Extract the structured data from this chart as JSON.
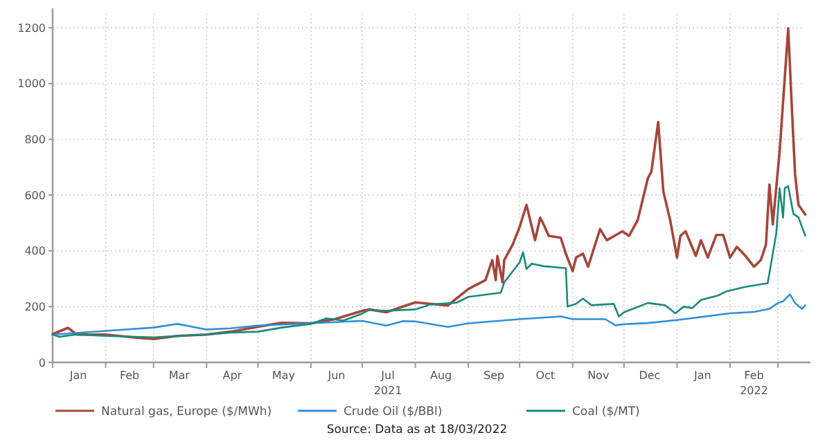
{
  "chart_data": {
    "type": "line",
    "annotations": [
      "Source: Data as at 18/03/2022"
    ],
    "xlim": [
      "2021-01-01",
      "2022-03-20"
    ],
    "xticks": [
      {
        "value": "2021-01-01",
        "label": null
      },
      {
        "value": "2021-01-16",
        "label": "Jan"
      },
      {
        "value": "2021-02-01",
        "label": null
      },
      {
        "value": "2021-02-15",
        "label": "Feb"
      },
      {
        "value": "2021-03-01",
        "label": null
      },
      {
        "value": "2021-03-16",
        "label": "Mar"
      },
      {
        "value": "2021-04-01",
        "label": null
      },
      {
        "value": "2021-04-16",
        "label": "Apr"
      },
      {
        "value": "2021-05-01",
        "label": null
      },
      {
        "value": "2021-05-16",
        "label": "May"
      },
      {
        "value": "2021-06-01",
        "label": null
      },
      {
        "value": "2021-06-16",
        "label": "Jun"
      },
      {
        "value": "2021-07-01",
        "label": null
      },
      {
        "value": "2021-07-16",
        "label": "Jul\n2021"
      },
      {
        "value": "2021-08-01",
        "label": null
      },
      {
        "value": "2021-08-16",
        "label": "Aug"
      },
      {
        "value": "2021-09-01",
        "label": null
      },
      {
        "value": "2021-09-16",
        "label": "Sep"
      },
      {
        "value": "2021-10-01",
        "label": null
      },
      {
        "value": "2021-10-16",
        "label": "Oct"
      },
      {
        "value": "2021-11-01",
        "label": null
      },
      {
        "value": "2021-11-16",
        "label": "Nov"
      },
      {
        "value": "2021-12-01",
        "label": null
      },
      {
        "value": "2021-12-16",
        "label": "Dec"
      },
      {
        "value": "2022-01-01",
        "label": null
      },
      {
        "value": "2022-01-16",
        "label": "Jan"
      },
      {
        "value": "2022-02-01",
        "label": null
      },
      {
        "value": "2022-02-15",
        "label": "Feb\n2022"
      },
      {
        "value": "2022-03-01",
        "label": null
      }
    ],
    "ylim": [
      0,
      1250
    ],
    "yticks": [
      0,
      200,
      400,
      600,
      800,
      1000,
      1200
    ],
    "grid": true,
    "legend": "bottom",
    "marker": "none",
    "line_style": "solid",
    "series": [
      {
        "name": "Natural gas, Europe ($/MWh)",
        "color": "#a5463a",
        "x": [
          "2021-01-01",
          "2021-01-10",
          "2021-01-15",
          "2021-02-01",
          "2021-02-20",
          "2021-03-01",
          "2021-03-15",
          "2021-04-01",
          "2021-04-15",
          "2021-05-01",
          "2021-05-15",
          "2021-06-01",
          "2021-06-15",
          "2021-07-01",
          "2021-07-05",
          "2021-07-15",
          "2021-08-01",
          "2021-08-20",
          "2021-09-01",
          "2021-09-11",
          "2021-09-15",
          "2021-09-17",
          "2021-09-18",
          "2021-09-21",
          "2021-09-22",
          "2021-09-27",
          "2021-10-01",
          "2021-10-05",
          "2021-10-10",
          "2021-10-13",
          "2021-10-15",
          "2021-10-18",
          "2021-10-25",
          "2021-10-28",
          "2021-11-01",
          "2021-11-03",
          "2021-11-07",
          "2021-11-10",
          "2021-11-17",
          "2021-11-21",
          "2021-11-30",
          "2021-12-04",
          "2021-12-09",
          "2021-12-15",
          "2021-12-17",
          "2021-12-21",
          "2021-12-24",
          "2021-12-28",
          "2022-01-01",
          "2022-01-03",
          "2022-01-06",
          "2022-01-12",
          "2022-01-15",
          "2022-01-19",
          "2022-01-24",
          "2022-01-28",
          "2022-02-01",
          "2022-02-05",
          "2022-02-10",
          "2022-02-15",
          "2022-02-19",
          "2022-02-22",
          "2022-02-24",
          "2022-02-26",
          "2022-03-02",
          "2022-03-07",
          "2022-03-09",
          "2022-03-11",
          "2022-03-13",
          "2022-03-17"
        ],
        "values": [
          101,
          124,
          100,
          100,
          88,
          84,
          95,
          100,
          110,
          128,
          142,
          140,
          155,
          185,
          190,
          180,
          215,
          204,
          263,
          295,
          367,
          295,
          382,
          287,
          367,
          423,
          486,
          565,
          438,
          519,
          495,
          454,
          447,
          390,
          327,
          376,
          390,
          343,
          478,
          438,
          470,
          454,
          510,
          661,
          684,
          862,
          613,
          510,
          376,
          454,
          470,
          382,
          438,
          376,
          457,
          457,
          376,
          414,
          382,
          343,
          367,
          423,
          638,
          495,
          757,
          1198,
          930,
          676,
          565,
          530
        ]
      },
      {
        "name": "Crude Oil ($/BBl)",
        "color": "#2f8fdb",
        "x": [
          "2021-01-01",
          "2021-02-01",
          "2021-03-01",
          "2021-03-15",
          "2021-04-01",
          "2021-04-15",
          "2021-05-01",
          "2021-06-01",
          "2021-07-01",
          "2021-07-15",
          "2021-07-25",
          "2021-08-01",
          "2021-08-20",
          "2021-09-01",
          "2021-10-01",
          "2021-10-25",
          "2021-11-01",
          "2021-11-20",
          "2021-11-26",
          "2021-12-01",
          "2021-12-15",
          "2022-01-01",
          "2022-02-01",
          "2022-02-15",
          "2022-02-24",
          "2022-03-01",
          "2022-03-04",
          "2022-03-08",
          "2022-03-11",
          "2022-03-15",
          "2022-03-17"
        ],
        "values": [
          100,
          113,
          125,
          138,
          118,
          122,
          132,
          140,
          149,
          132,
          148,
          147,
          127,
          140,
          155,
          165,
          155,
          155,
          133,
          137,
          141,
          152,
          176,
          181,
          192,
          213,
          219,
          244,
          213,
          192,
          205
        ]
      },
      {
        "name": "Coal ($/MT)",
        "color": "#1a8a7a",
        "x": [
          "2021-01-01",
          "2021-01-05",
          "2021-01-15",
          "2021-02-01",
          "2021-03-01",
          "2021-04-01",
          "2021-04-15",
          "2021-05-01",
          "2021-05-15",
          "2021-06-01",
          "2021-06-10",
          "2021-06-20",
          "2021-07-01",
          "2021-07-05",
          "2021-07-15",
          "2021-08-01",
          "2021-08-10",
          "2021-08-25",
          "2021-09-01",
          "2021-09-20",
          "2021-09-22",
          "2021-10-01",
          "2021-10-03",
          "2021-10-05",
          "2021-10-08",
          "2021-10-15",
          "2021-10-28",
          "2021-10-29",
          "2021-11-03",
          "2021-11-07",
          "2021-11-12",
          "2021-11-25",
          "2021-11-28",
          "2021-12-01",
          "2021-12-15",
          "2021-12-25",
          "2021-12-31",
          "2022-01-05",
          "2022-01-10",
          "2022-01-15",
          "2022-01-25",
          "2022-01-30",
          "2022-02-10",
          "2022-02-23",
          "2022-02-28",
          "2022-03-02",
          "2022-03-04",
          "2022-03-05",
          "2022-03-07",
          "2022-03-10",
          "2022-03-13",
          "2022-03-17"
        ],
        "values": [
          100,
          92,
          100,
          95,
          90,
          100,
          107,
          110,
          125,
          138,
          158,
          150,
          175,
          188,
          185,
          190,
          208,
          214,
          235,
          250,
          287,
          359,
          395,
          335,
          354,
          345,
          338,
          200,
          210,
          229,
          205,
          210,
          165,
          180,
          213,
          205,
          176,
          200,
          195,
          224,
          240,
          255,
          271,
          284,
          462,
          624,
          519,
          625,
          632,
          533,
          520,
          454
        ]
      }
    ]
  }
}
